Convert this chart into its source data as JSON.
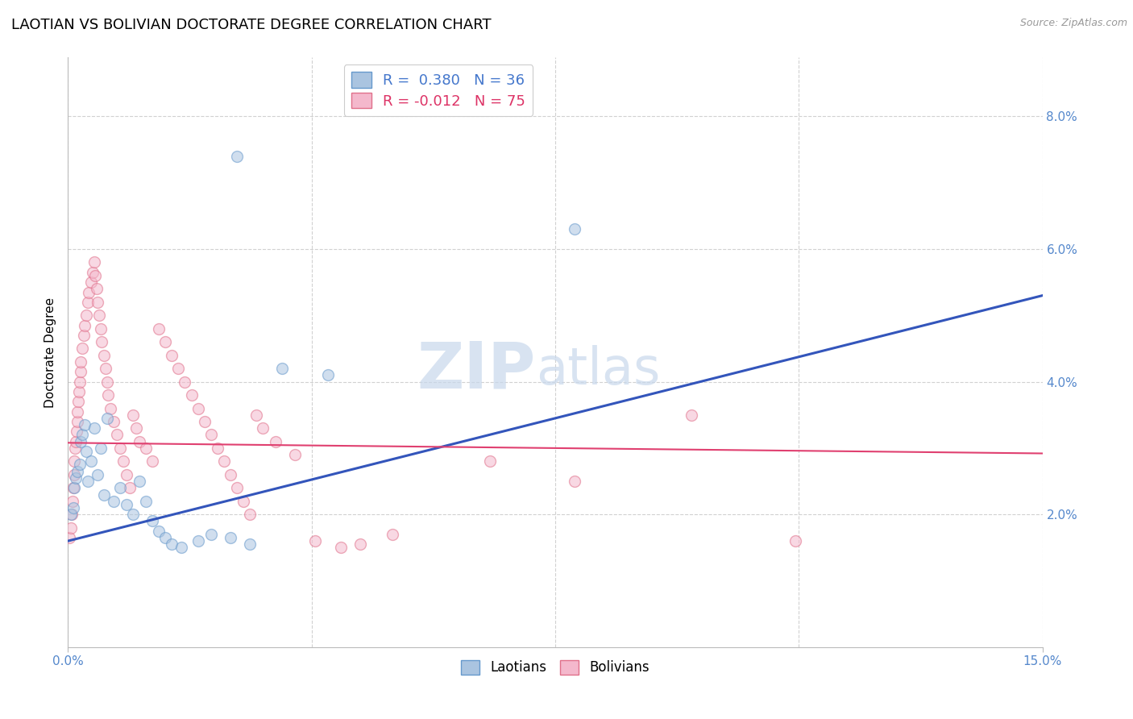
{
  "title": "LAOTIAN VS BOLIVIAN DOCTORATE DEGREE CORRELATION CHART",
  "source": "Source: ZipAtlas.com",
  "ylabel": "Doctorate Degree",
  "xmin": 0.0,
  "xmax": 15.0,
  "ymin": 0.0,
  "ymax": 8.888,
  "yticks": [
    2.0,
    4.0,
    6.0,
    8.0
  ],
  "xticks_pos": [
    0.0,
    15.0
  ],
  "xtick_labels": [
    "0.0%",
    "15.0%"
  ],
  "legend_r1": "R =  0.380   N = 36",
  "legend_r2": "R = -0.012   N = 75",
  "laotian_marker_color": "#aac4e0",
  "laotian_edge_color": "#6699cc",
  "bolivian_marker_color": "#f4b8cc",
  "bolivian_edge_color": "#e0708a",
  "blue_line_color": "#3355bb",
  "pink_line_color": "#e04070",
  "watermark_zip": "ZIP",
  "watermark_atlas": "atlas",
  "background_color": "#ffffff",
  "grid_color": "#cccccc",
  "title_fontsize": 13,
  "label_fontsize": 11,
  "tick_fontsize": 11,
  "marker_size": 100,
  "marker_alpha": 0.55,
  "marker_edge_width": 1.0,
  "blue_line_y0": 1.6,
  "blue_line_y1": 5.3,
  "pink_line_y0": 3.08,
  "pink_line_y1": 2.92,
  "laotian_points": [
    [
      0.05,
      2.0
    ],
    [
      0.08,
      2.1
    ],
    [
      0.1,
      2.4
    ],
    [
      0.12,
      2.55
    ],
    [
      0.15,
      2.65
    ],
    [
      0.18,
      2.75
    ],
    [
      0.2,
      3.1
    ],
    [
      0.22,
      3.2
    ],
    [
      0.25,
      3.35
    ],
    [
      0.28,
      2.95
    ],
    [
      0.3,
      2.5
    ],
    [
      0.35,
      2.8
    ],
    [
      0.4,
      3.3
    ],
    [
      0.45,
      2.6
    ],
    [
      0.5,
      3.0
    ],
    [
      0.55,
      2.3
    ],
    [
      0.6,
      3.45
    ],
    [
      0.7,
      2.2
    ],
    [
      0.8,
      2.4
    ],
    [
      0.9,
      2.15
    ],
    [
      1.0,
      2.0
    ],
    [
      1.1,
      2.5
    ],
    [
      1.2,
      2.2
    ],
    [
      1.3,
      1.9
    ],
    [
      1.4,
      1.75
    ],
    [
      1.5,
      1.65
    ],
    [
      1.6,
      1.55
    ],
    [
      1.75,
      1.5
    ],
    [
      2.0,
      1.6
    ],
    [
      2.2,
      1.7
    ],
    [
      2.5,
      1.65
    ],
    [
      2.8,
      1.55
    ],
    [
      3.3,
      4.2
    ],
    [
      4.0,
      4.1
    ],
    [
      2.6,
      7.4
    ],
    [
      7.8,
      6.3
    ]
  ],
  "bolivian_points": [
    [
      0.02,
      1.65
    ],
    [
      0.04,
      1.8
    ],
    [
      0.06,
      2.0
    ],
    [
      0.07,
      2.2
    ],
    [
      0.08,
      2.4
    ],
    [
      0.09,
      2.6
    ],
    [
      0.1,
      2.8
    ],
    [
      0.11,
      3.0
    ],
    [
      0.12,
      3.1
    ],
    [
      0.13,
      3.25
    ],
    [
      0.14,
      3.4
    ],
    [
      0.15,
      3.55
    ],
    [
      0.16,
      3.7
    ],
    [
      0.17,
      3.85
    ],
    [
      0.18,
      4.0
    ],
    [
      0.19,
      4.15
    ],
    [
      0.2,
      4.3
    ],
    [
      0.22,
      4.5
    ],
    [
      0.24,
      4.7
    ],
    [
      0.26,
      4.85
    ],
    [
      0.28,
      5.0
    ],
    [
      0.3,
      5.2
    ],
    [
      0.32,
      5.35
    ],
    [
      0.35,
      5.5
    ],
    [
      0.38,
      5.65
    ],
    [
      0.4,
      5.8
    ],
    [
      0.42,
      5.6
    ],
    [
      0.44,
      5.4
    ],
    [
      0.46,
      5.2
    ],
    [
      0.48,
      5.0
    ],
    [
      0.5,
      4.8
    ],
    [
      0.52,
      4.6
    ],
    [
      0.55,
      4.4
    ],
    [
      0.58,
      4.2
    ],
    [
      0.6,
      4.0
    ],
    [
      0.62,
      3.8
    ],
    [
      0.65,
      3.6
    ],
    [
      0.7,
      3.4
    ],
    [
      0.75,
      3.2
    ],
    [
      0.8,
      3.0
    ],
    [
      0.85,
      2.8
    ],
    [
      0.9,
      2.6
    ],
    [
      0.95,
      2.4
    ],
    [
      1.0,
      3.5
    ],
    [
      1.05,
      3.3
    ],
    [
      1.1,
      3.1
    ],
    [
      1.2,
      3.0
    ],
    [
      1.3,
      2.8
    ],
    [
      1.4,
      4.8
    ],
    [
      1.5,
      4.6
    ],
    [
      1.6,
      4.4
    ],
    [
      1.7,
      4.2
    ],
    [
      1.8,
      4.0
    ],
    [
      1.9,
      3.8
    ],
    [
      2.0,
      3.6
    ],
    [
      2.1,
      3.4
    ],
    [
      2.2,
      3.2
    ],
    [
      2.3,
      3.0
    ],
    [
      2.4,
      2.8
    ],
    [
      2.5,
      2.6
    ],
    [
      2.6,
      2.4
    ],
    [
      2.7,
      2.2
    ],
    [
      2.8,
      2.0
    ],
    [
      2.9,
      3.5
    ],
    [
      3.0,
      3.3
    ],
    [
      3.2,
      3.1
    ],
    [
      3.5,
      2.9
    ],
    [
      3.8,
      1.6
    ],
    [
      4.2,
      1.5
    ],
    [
      4.5,
      1.55
    ],
    [
      5.0,
      1.7
    ],
    [
      6.5,
      2.8
    ],
    [
      7.8,
      2.5
    ],
    [
      9.6,
      3.5
    ],
    [
      11.2,
      1.6
    ]
  ]
}
